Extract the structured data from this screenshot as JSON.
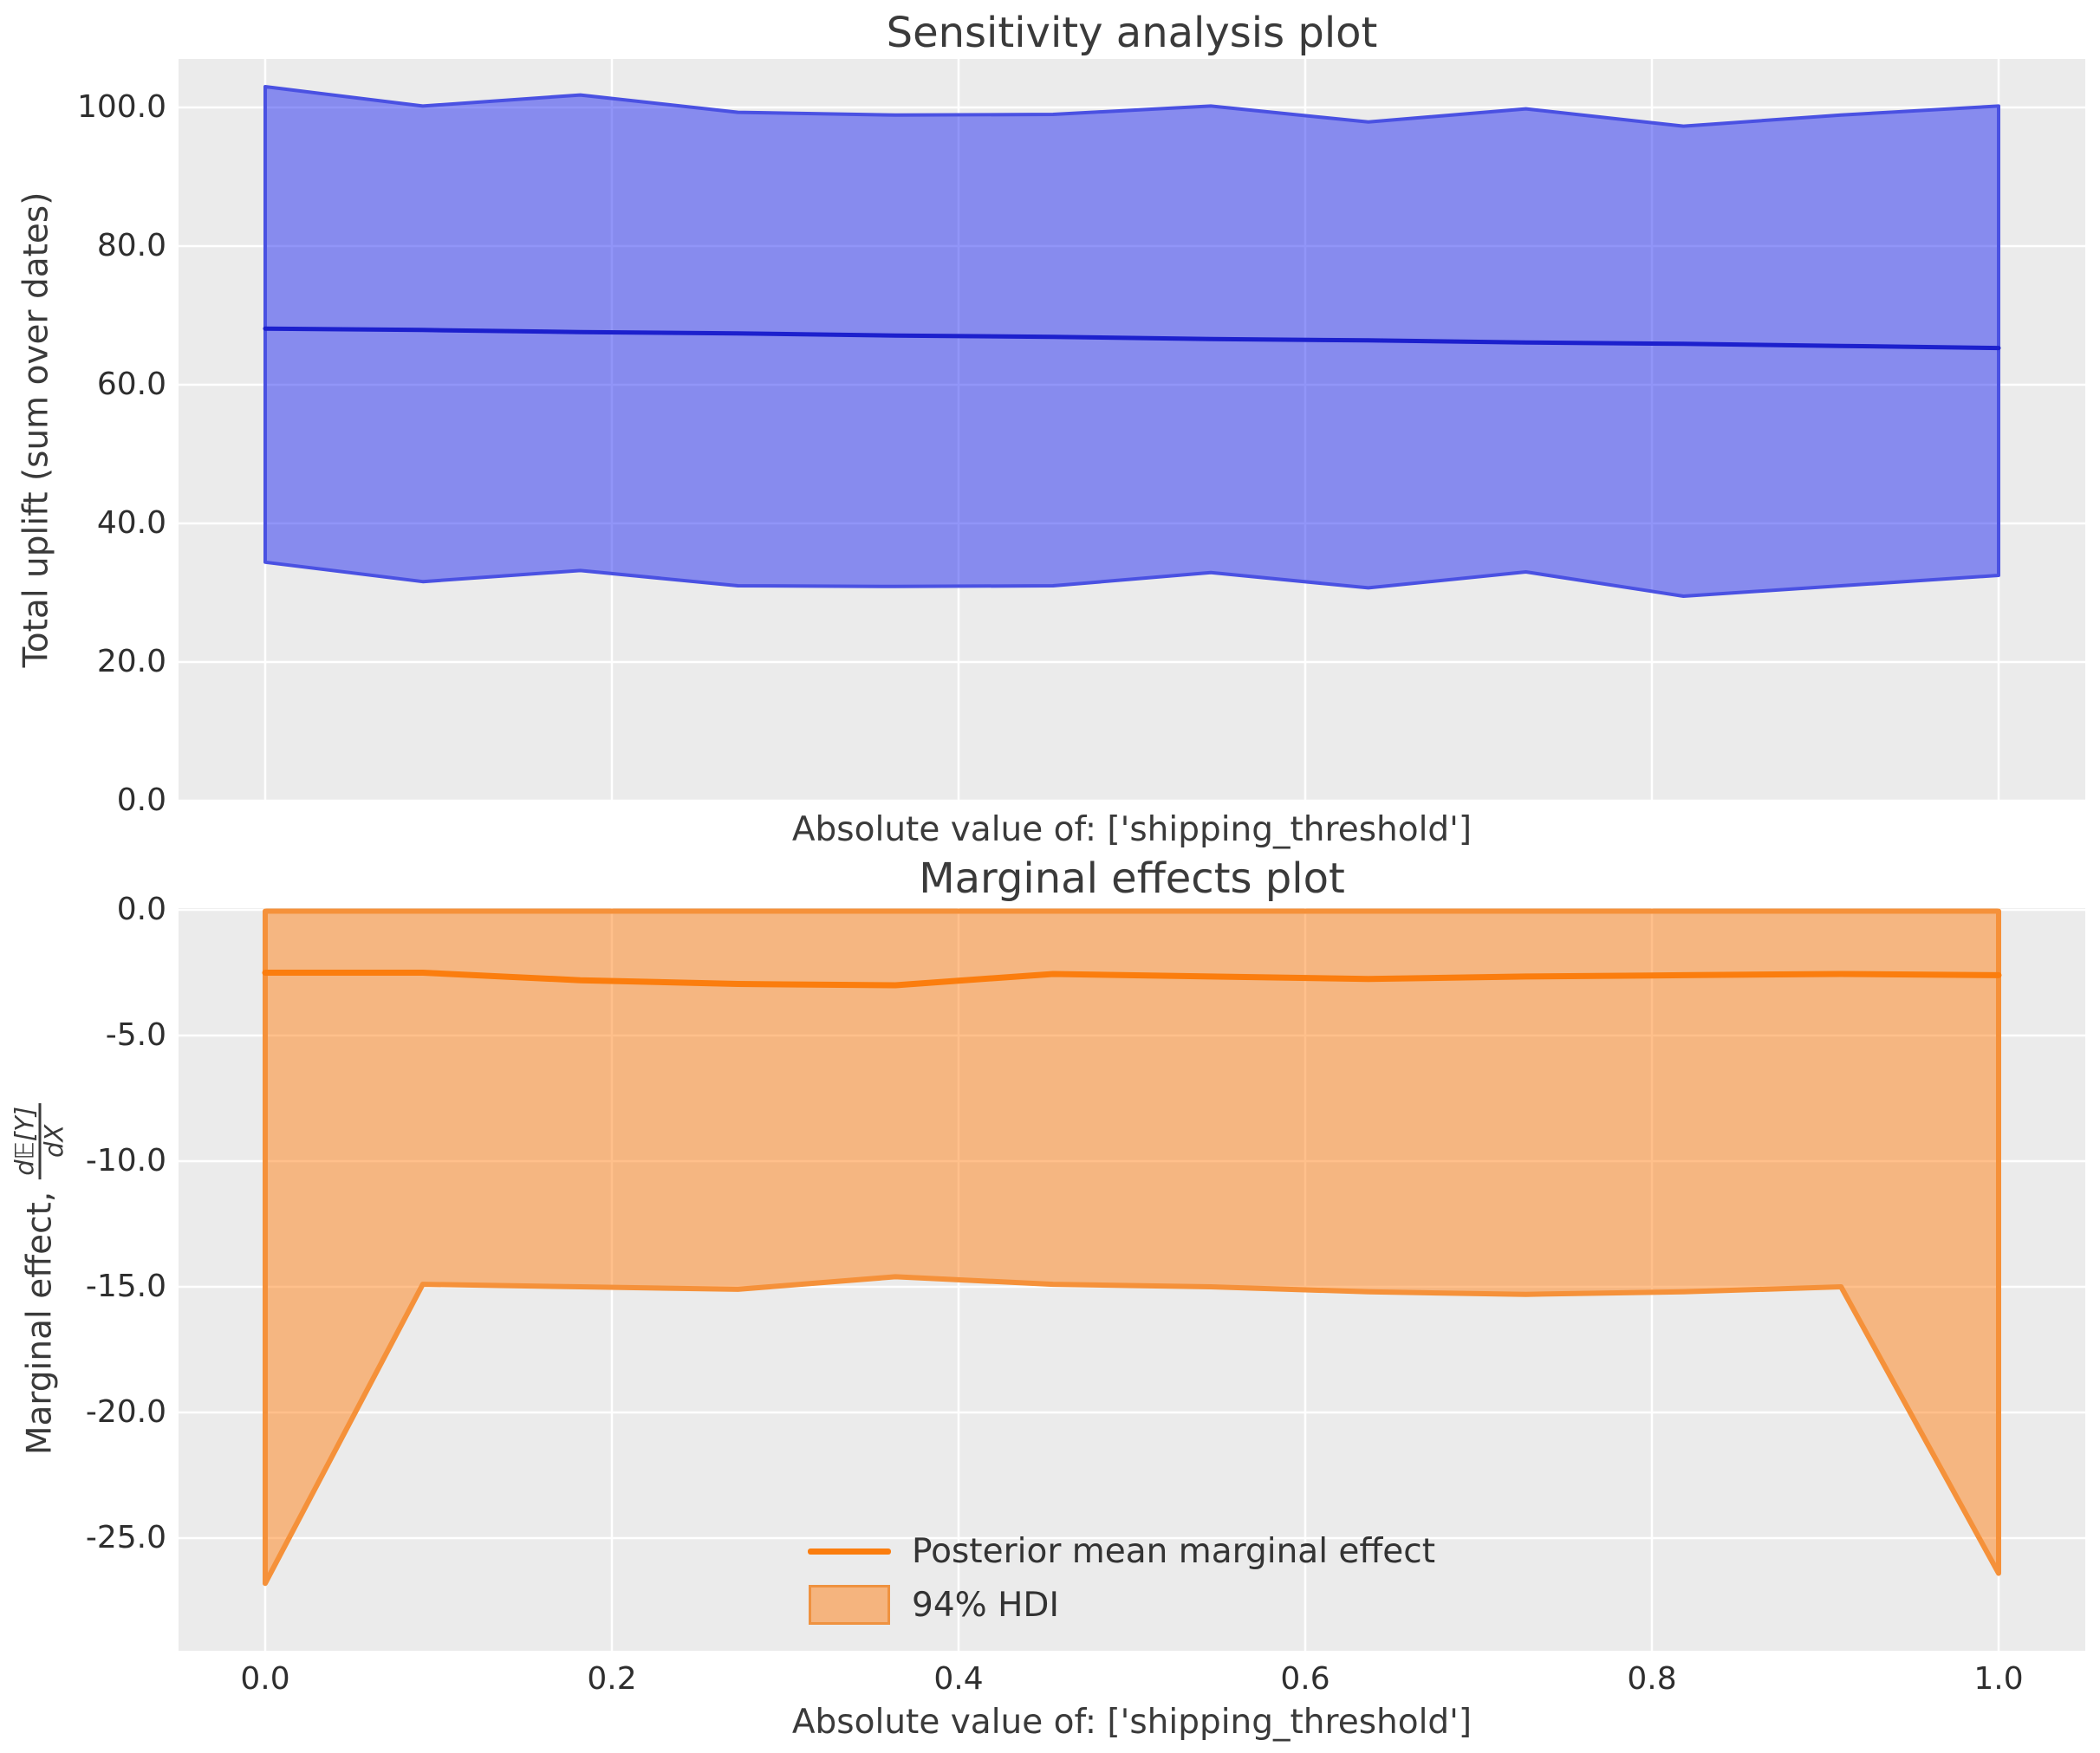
{
  "figure": {
    "background": "#ffffff",
    "axes_background": "#ebebeb",
    "grid_color": "#ffffff",
    "text_color": "#333333"
  },
  "chart_data": [
    {
      "type": "area",
      "title": "Sensitivity analysis plot",
      "xlabel": "Absolute value of: ['shipping_threshold']",
      "ylabel": "Total uplift (sum over dates)",
      "grid": true,
      "x": [
        0.0,
        0.0909,
        0.1818,
        0.2727,
        0.3636,
        0.4545,
        0.5455,
        0.6364,
        0.7273,
        0.8182,
        0.9091,
        1.0
      ],
      "series": [
        {
          "name": "posterior-mean-total-uplift",
          "values": [
            68.1,
            67.9,
            67.6,
            67.4,
            67.1,
            66.9,
            66.6,
            66.4,
            66.1,
            65.9,
            65.6,
            65.3
          ]
        },
        {
          "name": "hdi-upper",
          "values": [
            103.0,
            100.2,
            101.8,
            99.3,
            98.9,
            99.0,
            100.2,
            97.9,
            99.8,
            97.3,
            98.9,
            100.2
          ]
        },
        {
          "name": "hdi-lower",
          "values": [
            34.4,
            31.6,
            33.2,
            31.0,
            30.9,
            31.0,
            32.9,
            30.7,
            33.0,
            29.5,
            31.0,
            32.5
          ]
        }
      ],
      "colors": {
        "band_fill": "#1a22f0",
        "band_fill_opacity": 0.48,
        "band_edge": "#4a51e2",
        "mean_line": "#1c20cd"
      },
      "ylim": [
        0,
        107
      ],
      "ytick_values": [
        0,
        20,
        40,
        60,
        80,
        100
      ],
      "ytick_labels": [
        "0.0",
        "20.0",
        "40.0",
        "60.0",
        "80.0",
        "100.0"
      ],
      "xtick_values": [
        0.0,
        0.2,
        0.4,
        0.6,
        0.8,
        1.0
      ],
      "xtick_labels": []
    },
    {
      "type": "area",
      "title": "Marginal effects plot",
      "xlabel": "Absolute value of: ['shipping_threshold']",
      "ylabel_prefix": "Marginal effect,",
      "ylabel_frac_numerator": "d𝔼[Y]",
      "ylabel_frac_denominator": "dX",
      "grid": true,
      "x": [
        0.0,
        0.0909,
        0.1818,
        0.2727,
        0.3636,
        0.4545,
        0.5455,
        0.6364,
        0.7273,
        0.8182,
        0.9091,
        1.0
      ],
      "series": [
        {
          "name": "posterior-mean-marginal-effect",
          "values": [
            -2.5,
            -2.5,
            -2.8,
            -2.95,
            -3.0,
            -2.55,
            -2.65,
            -2.75,
            -2.65,
            -2.6,
            -2.55,
            -2.6
          ]
        },
        {
          "name": "hdi-upper",
          "values": [
            -0.05,
            -0.05,
            -0.05,
            -0.05,
            -0.05,
            -0.05,
            -0.05,
            -0.05,
            -0.05,
            -0.05,
            -0.05,
            -0.05
          ]
        },
        {
          "name": "hdi-lower",
          "values": [
            -26.8,
            -14.9,
            -15.0,
            -15.1,
            -14.6,
            -14.9,
            -15.0,
            -15.2,
            -15.3,
            -15.2,
            -15.0,
            -26.4
          ]
        }
      ],
      "colors": {
        "band_fill": "#ff7e12",
        "band_fill_opacity": 0.49,
        "band_edge": "#f5913a",
        "mean_line": "#fb7d0e"
      },
      "ylim": [
        -29.5,
        0.15
      ],
      "ytick_values": [
        0,
        -5,
        -10,
        -15,
        -20,
        -25
      ],
      "ytick_labels": [
        "0.0",
        "-5.0",
        "-10.0",
        "-15.0",
        "-20.0",
        "-25.0"
      ],
      "xtick_values": [
        0.0,
        0.2,
        0.4,
        0.6,
        0.8,
        1.0
      ],
      "xtick_labels": [
        "0.0",
        "0.2",
        "0.4",
        "0.6",
        "0.8",
        "1.0"
      ],
      "legend": {
        "entries": [
          {
            "type": "line",
            "label": "Posterior mean marginal effect",
            "color": "#fb7d0e"
          },
          {
            "type": "patch",
            "label": "94% HDI",
            "fill": "#f5b47e",
            "edge": "#ef9240"
          }
        ]
      }
    }
  ]
}
